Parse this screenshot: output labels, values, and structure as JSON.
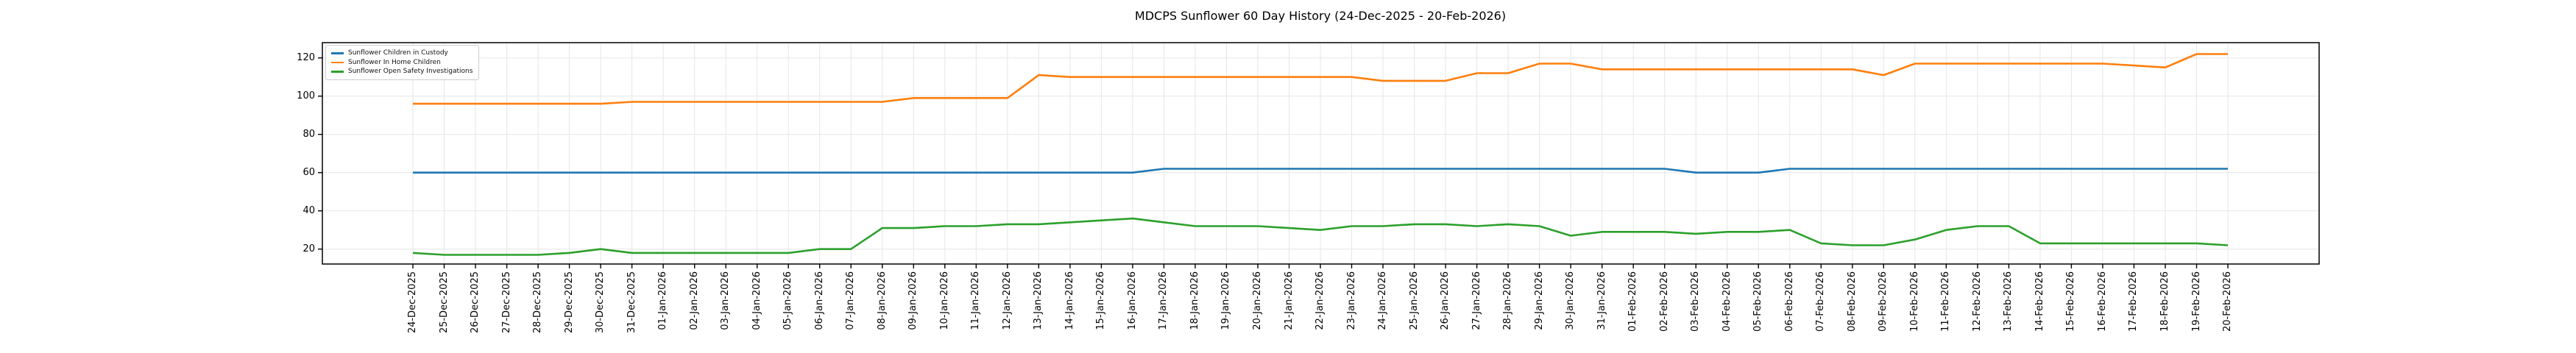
{
  "figure": {
    "title": "MDCPS Sunflower 60 Day History (24-Dec-2025 - 20-Feb-2026)"
  },
  "chart_data": {
    "type": "line",
    "title": "MDCPS Sunflower 60 Day History (24-Dec-2025 - 20-Feb-2026)",
    "xlabel": "",
    "ylabel": "",
    "grid": true,
    "legend_position": "upper-left",
    "ylim": [
      12.2,
      128.0
    ],
    "y_ticks": [
      20,
      40,
      60,
      80,
      100,
      120
    ],
    "x_tick_labels": [
      "24-Dec-2025",
      "25-Dec-2025",
      "26-Dec-2025",
      "27-Dec-2025",
      "28-Dec-2025",
      "29-Dec-2025",
      "30-Dec-2025",
      "31-Dec-2025",
      "01-Jan-2026",
      "02-Jan-2026",
      "03-Jan-2026",
      "04-Jan-2026",
      "05-Jan-2026",
      "06-Jan-2026",
      "07-Jan-2026",
      "08-Jan-2026",
      "09-Jan-2026",
      "10-Jan-2026",
      "11-Jan-2026",
      "12-Jan-2026",
      "13-Jan-2026",
      "14-Jan-2026",
      "15-Jan-2026",
      "16-Jan-2026",
      "17-Jan-2026",
      "18-Jan-2026",
      "19-Jan-2026",
      "20-Jan-2026",
      "21-Jan-2026",
      "22-Jan-2026",
      "23-Jan-2026",
      "24-Jan-2026",
      "25-Jan-2026",
      "26-Jan-2026",
      "27-Jan-2026",
      "28-Jan-2026",
      "29-Jan-2026",
      "30-Jan-2026",
      "31-Jan-2026",
      "01-Feb-2026",
      "02-Feb-2026",
      "03-Feb-2026",
      "04-Feb-2026",
      "05-Feb-2026",
      "06-Feb-2026",
      "07-Feb-2026",
      "08-Feb-2026",
      "09-Feb-2026",
      "10-Feb-2026",
      "11-Feb-2026",
      "12-Feb-2026",
      "13-Feb-2026",
      "14-Feb-2026",
      "15-Feb-2026",
      "16-Feb-2026",
      "17-Feb-2026",
      "18-Feb-2026",
      "19-Feb-2026",
      "20-Feb-2026"
    ],
    "series": [
      {
        "name": "Sunflower Children in Custody",
        "color": "#1f77b4",
        "values": [
          60,
          60,
          60,
          60,
          60,
          60,
          60,
          60,
          60,
          60,
          60,
          60,
          60,
          60,
          60,
          60,
          60,
          60,
          60,
          60,
          60,
          60,
          60,
          60,
          62,
          62,
          62,
          62,
          62,
          62,
          62,
          62,
          62,
          62,
          62,
          62,
          62,
          62,
          62,
          62,
          62,
          60,
          60,
          60,
          62,
          62,
          62,
          62,
          62,
          62,
          62,
          62,
          62,
          62,
          62,
          62,
          62,
          62,
          62
        ]
      },
      {
        "name": "Sunflower In Home Children",
        "color": "#ff7f0e",
        "values": [
          96,
          96,
          96,
          96,
          96,
          96,
          96,
          97,
          97,
          97,
          97,
          97,
          97,
          97,
          97,
          97,
          99,
          99,
          99,
          99,
          111,
          110,
          110,
          110,
          110,
          110,
          110,
          110,
          110,
          110,
          110,
          108,
          108,
          108,
          112,
          112,
          117,
          117,
          114,
          114,
          114,
          114,
          114,
          114,
          114,
          114,
          114,
          111,
          117,
          117,
          117,
          117,
          117,
          117,
          117,
          116,
          115,
          122,
          122
        ]
      },
      {
        "name": "Sunflower Open Safety Investigations",
        "color": "#2ca02c",
        "values": [
          18,
          17,
          17,
          17,
          17,
          18,
          20,
          18,
          18,
          18,
          18,
          18,
          18,
          20,
          20,
          31,
          31,
          32,
          32,
          33,
          33,
          34,
          35,
          36,
          34,
          32,
          32,
          32,
          31,
          30,
          32,
          32,
          33,
          33,
          32,
          33,
          32,
          27,
          29,
          29,
          29,
          28,
          29,
          29,
          30,
          23,
          22,
          22,
          25,
          30,
          32,
          32,
          23,
          23,
          23,
          23,
          23,
          23,
          22
        ]
      }
    ],
    "style": {
      "grid_color": "#e6e6e6",
      "spine_color": "#000000",
      "background": "#ffffff"
    }
  }
}
